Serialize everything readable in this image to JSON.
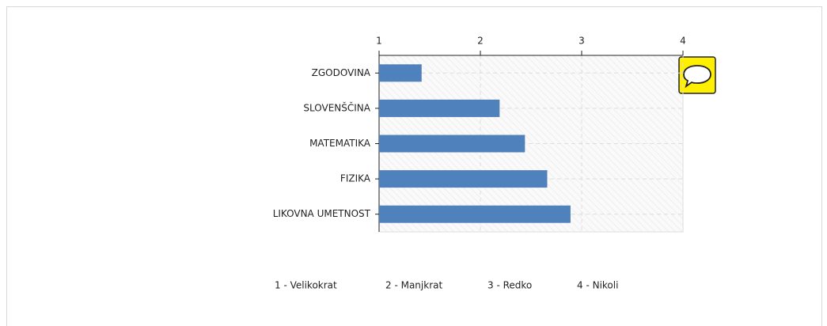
{
  "chart_data": {
    "type": "bar",
    "orientation": "horizontal",
    "categories": [
      "ZGODOVINA",
      "SLOVENŠČINA",
      "MATEMATIKA",
      "FIZIKA",
      "LIKOVNA UMETNOST"
    ],
    "values": [
      1.42,
      2.19,
      2.44,
      2.66,
      2.89
    ],
    "color": "#4f81bd",
    "xlim": [
      1,
      4
    ],
    "xticks": [
      1,
      2,
      3,
      4
    ],
    "grid": true,
    "annotations": [
      "1 - Velikokrat",
      "2 - Manjkrat",
      "3 - Redko",
      "4 - Nikoli"
    ]
  }
}
